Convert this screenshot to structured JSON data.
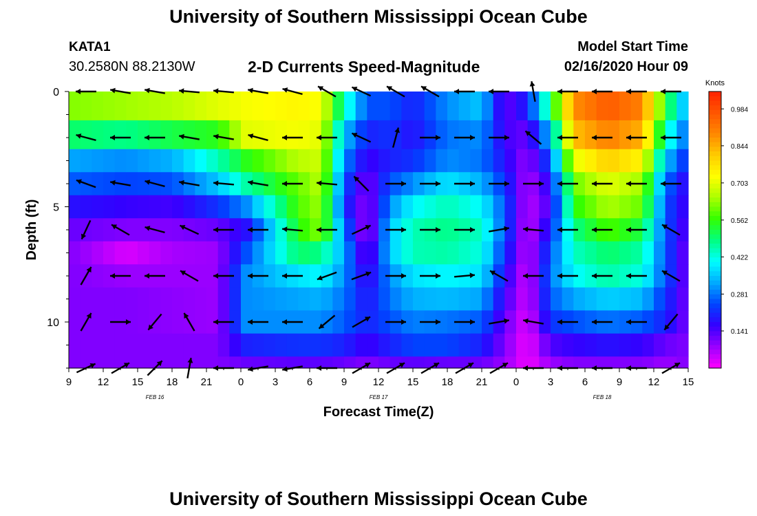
{
  "header": {
    "title": "University of Southern Mississippi Ocean Cube",
    "station": "KATA1",
    "coords": "30.2580N 88.2130W",
    "subtitle": "2-D Currents Speed-Magnitude",
    "model_label": "Model Start Time",
    "model_time": "02/16/2020 Hour 09"
  },
  "footer": {
    "title": "University of Southern Mississippi Ocean Cube"
  },
  "colors": {
    "scale": [
      "#ff00ff",
      "#9900ff",
      "#3300ff",
      "#0044ff",
      "#00aaff",
      "#00ffff",
      "#00ff80",
      "#33ff00",
      "#aaff00",
      "#ffff00",
      "#ffcc00",
      "#ff8800",
      "#ff5500",
      "#ff2200"
    ],
    "arrow": "#000000",
    "axis": "#000000"
  },
  "chart_data": {
    "type": "heatmap",
    "title": "2-D Currents Speed-Magnitude",
    "xlabel": "Forecast Time(Z)",
    "ylabel": "Depth (ft)",
    "colorbar_label": "Knots",
    "colorbar_ticks": [
      "0.984",
      "0.844",
      "0.703",
      "0.562",
      "0.422",
      "0.281",
      "0.141"
    ],
    "colorbar_values": [
      0.984,
      0.844,
      0.703,
      0.562,
      0.422,
      0.281,
      0.141
    ],
    "color_range": [
      0,
      1.05
    ],
    "x_range": [
      9,
      63
    ],
    "y_range": [
      0,
      12
    ],
    "y_ticks": [
      0,
      5,
      10
    ],
    "x_tick_values": [
      9,
      12,
      15,
      18,
      21,
      24,
      27,
      30,
      33,
      36,
      39,
      42,
      45,
      48,
      51,
      54,
      57,
      60,
      63
    ],
    "x_tick_labels": [
      "9",
      "12",
      "15",
      "18",
      "21",
      "0",
      "3",
      "6",
      "9",
      "12",
      "15",
      "18",
      "21",
      "0",
      "3",
      "6",
      "9",
      "12",
      "15"
    ],
    "date_labels": [
      {
        "x": 16.5,
        "text": "FEB 16"
      },
      {
        "x": 36.0,
        "text": "FEB 17"
      },
      {
        "x": 55.5,
        "text": "FEB 18"
      }
    ],
    "grid": false,
    "legend": "right",
    "depths": [
      0.5,
      2,
      3,
      4,
      5,
      6,
      7,
      8,
      9,
      10,
      11,
      12
    ],
    "speed_profiles": [
      {
        "x": 9,
        "v": [
          0.62,
          0.5,
          0.32,
          0.26,
          0.18,
          0.12,
          0.1,
          0.1,
          0.1,
          0.1,
          0.1,
          0.1
        ]
      },
      {
        "x": 14,
        "v": [
          0.64,
          0.48,
          0.3,
          0.24,
          0.16,
          0.1,
          0.03,
          0.08,
          0.1,
          0.1,
          0.1,
          0.1
        ]
      },
      {
        "x": 18,
        "v": [
          0.66,
          0.52,
          0.33,
          0.25,
          0.15,
          0.1,
          0.07,
          0.08,
          0.09,
          0.09,
          0.1,
          0.1
        ]
      },
      {
        "x": 22,
        "v": [
          0.7,
          0.55,
          0.45,
          0.35,
          0.22,
          0.12,
          0.08,
          0.08,
          0.08,
          0.08,
          0.1,
          0.1
        ]
      },
      {
        "x": 24.5,
        "v": [
          0.72,
          0.7,
          0.55,
          0.46,
          0.3,
          0.18,
          0.25,
          0.3,
          0.3,
          0.3,
          0.2,
          0.12
        ]
      },
      {
        "x": 29,
        "v": [
          0.74,
          0.72,
          0.66,
          0.6,
          0.58,
          0.55,
          0.5,
          0.38,
          0.32,
          0.3,
          0.22,
          0.13
        ]
      },
      {
        "x": 31,
        "v": [
          0.72,
          0.7,
          0.68,
          0.66,
          0.64,
          0.62,
          0.48,
          0.4,
          0.33,
          0.3,
          0.22,
          0.13
        ]
      },
      {
        "x": 33,
        "v": [
          0.45,
          0.35,
          0.3,
          0.25,
          0.22,
          0.28,
          0.32,
          0.3,
          0.28,
          0.26,
          0.2,
          0.12
        ]
      },
      {
        "x": 35,
        "v": [
          0.25,
          0.2,
          0.15,
          0.1,
          0.08,
          0.06,
          0.1,
          0.15,
          0.18,
          0.2,
          0.15,
          0.1
        ]
      },
      {
        "x": 37,
        "v": [
          0.25,
          0.22,
          0.2,
          0.25,
          0.3,
          0.35,
          0.35,
          0.3,
          0.28,
          0.25,
          0.2,
          0.12
        ]
      },
      {
        "x": 39,
        "v": [
          0.2,
          0.18,
          0.22,
          0.3,
          0.4,
          0.45,
          0.45,
          0.38,
          0.33,
          0.29,
          0.24,
          0.13
        ]
      },
      {
        "x": 42,
        "v": [
          0.3,
          0.28,
          0.3,
          0.38,
          0.45,
          0.48,
          0.46,
          0.4,
          0.34,
          0.28,
          0.24,
          0.12
        ]
      },
      {
        "x": 45,
        "v": [
          0.35,
          0.3,
          0.28,
          0.33,
          0.4,
          0.44,
          0.42,
          0.38,
          0.32,
          0.26,
          0.2,
          0.12
        ]
      },
      {
        "x": 47,
        "v": [
          0.12,
          0.15,
          0.18,
          0.22,
          0.25,
          0.25,
          0.22,
          0.18,
          0.15,
          0.12,
          0.1,
          0.08
        ]
      },
      {
        "x": 49,
        "v": [
          0.2,
          0.12,
          0.08,
          0.06,
          0.05,
          0.04,
          0.04,
          0.03,
          0.03,
          0.02,
          0.01,
          0.01
        ]
      },
      {
        "x": 51,
        "v": [
          0.5,
          0.35,
          0.25,
          0.18,
          0.15,
          0.2,
          0.25,
          0.28,
          0.26,
          0.22,
          0.14,
          0.08
        ]
      },
      {
        "x": 53,
        "v": [
          0.88,
          0.82,
          0.7,
          0.6,
          0.55,
          0.48,
          0.44,
          0.4,
          0.32,
          0.25,
          0.16,
          0.1
        ]
      },
      {
        "x": 56,
        "v": [
          0.96,
          0.9,
          0.8,
          0.7,
          0.65,
          0.58,
          0.5,
          0.46,
          0.36,
          0.28,
          0.18,
          0.1
        ]
      },
      {
        "x": 59,
        "v": [
          0.9,
          0.84,
          0.74,
          0.64,
          0.6,
          0.52,
          0.46,
          0.42,
          0.34,
          0.26,
          0.16,
          0.1
        ]
      },
      {
        "x": 61,
        "v": [
          0.55,
          0.45,
          0.35,
          0.28,
          0.25,
          0.25,
          0.25,
          0.25,
          0.22,
          0.2,
          0.12,
          0.08
        ]
      },
      {
        "x": 63,
        "v": [
          0.3,
          0.25,
          0.2,
          0.15,
          0.14,
          0.12,
          0.1,
          0.1,
          0.1,
          0.1,
          0.1,
          0.1
        ]
      }
    ],
    "vector_times": [
      10.5,
      13.5,
      16.5,
      19.5,
      22.5,
      25.5,
      28.5,
      31.5,
      34.5,
      37.5,
      40.5,
      43.5,
      46.5,
      49.5,
      52.5,
      55.5,
      58.5,
      61.5
    ],
    "vector_depths": [
      0,
      2,
      4,
      6,
      8,
      10,
      12
    ],
    "vector_angles_deg": [
      [
        180,
        170,
        170,
        175,
        175,
        170,
        165,
        150,
        155,
        150,
        150,
        180,
        180,
        100,
        180,
        180,
        180,
        180
      ],
      [
        165,
        180,
        180,
        170,
        170,
        165,
        180,
        180,
        155,
        75,
        0,
        0,
        0,
        140,
        180,
        180,
        180,
        180
      ],
      [
        160,
        170,
        165,
        170,
        175,
        170,
        180,
        175,
        135,
        0,
        0,
        0,
        0,
        0,
        180,
        180,
        180,
        180
      ],
      [
        245,
        150,
        165,
        155,
        180,
        180,
        175,
        180,
        25,
        0,
        0,
        0,
        10,
        175,
        180,
        180,
        180,
        150
      ],
      [
        60,
        180,
        180,
        150,
        180,
        180,
        180,
        200,
        20,
        0,
        0,
        5,
        150,
        180,
        180,
        180,
        180,
        150
      ],
      [
        60,
        0,
        230,
        120,
        180,
        180,
        180,
        220,
        30,
        0,
        0,
        0,
        10,
        170,
        180,
        180,
        180,
        230
      ],
      [
        25,
        30,
        45,
        80,
        180,
        190,
        190,
        180,
        30,
        30,
        30,
        30,
        30,
        180,
        180,
        180,
        180,
        30
      ]
    ]
  }
}
